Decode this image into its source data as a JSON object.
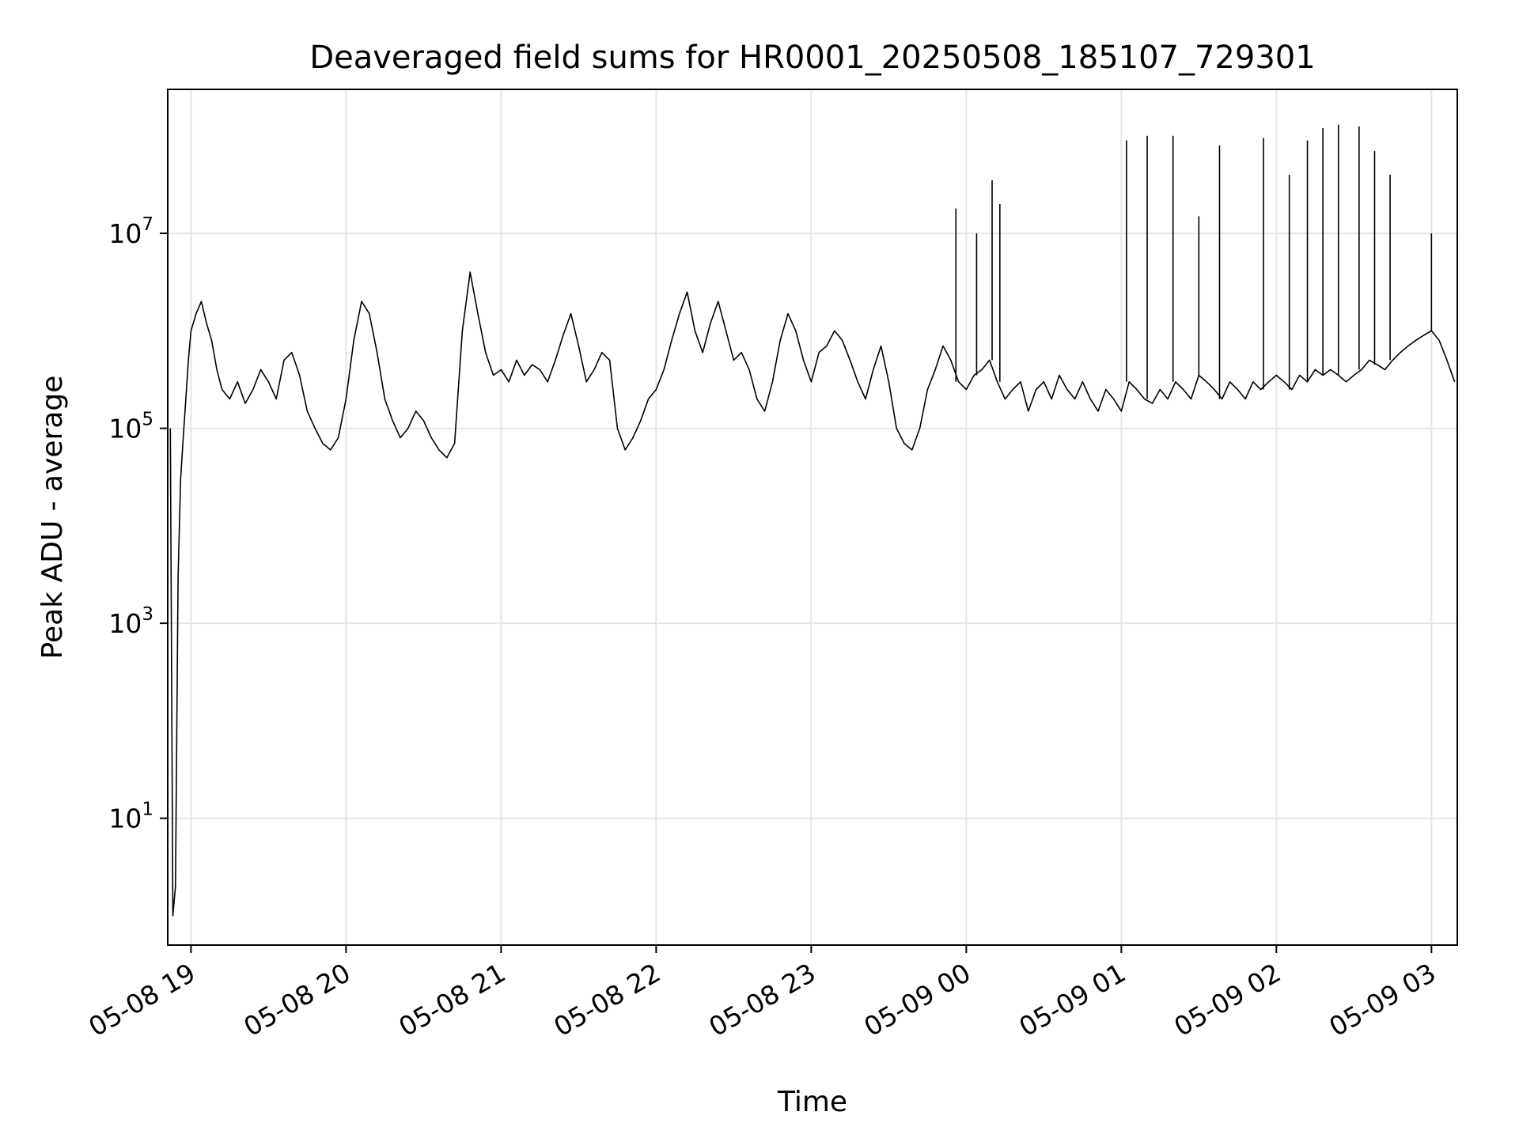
{
  "chart_data": {
    "type": "line",
    "title": "Deaveraged field sums for HR0001_20250508_185107_729301",
    "xlabel": "Time",
    "ylabel": "Peak ADU - average",
    "y_scale": "log",
    "grid": true,
    "legend": "none",
    "x_range": [
      "2025-05-08 18:51",
      "2025-05-09 03:10"
    ],
    "y_range": [
      0.5,
      300000000
    ],
    "x_ticks": [
      {
        "t": "2025-05-08 19:00",
        "label": "05-08 19"
      },
      {
        "t": "2025-05-08 20:00",
        "label": "05-08 20"
      },
      {
        "t": "2025-05-08 21:00",
        "label": "05-08 21"
      },
      {
        "t": "2025-05-08 22:00",
        "label": "05-08 22"
      },
      {
        "t": "2025-05-08 23:00",
        "label": "05-08 23"
      },
      {
        "t": "2025-05-09 00:00",
        "label": "05-09 00"
      },
      {
        "t": "2025-05-09 01:00",
        "label": "05-09 01"
      },
      {
        "t": "2025-05-09 02:00",
        "label": "05-09 02"
      },
      {
        "t": "2025-05-09 03:00",
        "label": "05-09 03"
      }
    ],
    "y_ticks": [
      {
        "value": 10,
        "base": "10",
        "exp": "1"
      },
      {
        "value": 1000,
        "base": "10",
        "exp": "3"
      },
      {
        "value": 100000,
        "base": "10",
        "exp": "5"
      },
      {
        "value": 10000000,
        "base": "10",
        "exp": "7"
      }
    ],
    "line_color": "#000000",
    "grid_color": "#e6e6e6",
    "series": [
      {
        "x": [
          "2025-05-08 18:52",
          "2025-05-08 18:53",
          "2025-05-08 18:54",
          "2025-05-08 18:55",
          "2025-05-08 18:56",
          "2025-05-08 18:57",
          "2025-05-08 18:58",
          "2025-05-08 18:59",
          "2025-05-08 19:00",
          "2025-05-08 19:02",
          "2025-05-08 19:04",
          "2025-05-08 19:06",
          "2025-05-08 19:08",
          "2025-05-08 19:10",
          "2025-05-08 19:12",
          "2025-05-08 19:15",
          "2025-05-08 19:18",
          "2025-05-08 19:21",
          "2025-05-08 19:24",
          "2025-05-08 19:27",
          "2025-05-08 19:30",
          "2025-05-08 19:33",
          "2025-05-08 19:36",
          "2025-05-08 19:39",
          "2025-05-08 19:42",
          "2025-05-08 19:45",
          "2025-05-08 19:48",
          "2025-05-08 19:51",
          "2025-05-08 19:54",
          "2025-05-08 19:57",
          "2025-05-08 20:00",
          "2025-05-08 20:03",
          "2025-05-08 20:06",
          "2025-05-08 20:09",
          "2025-05-08 20:12",
          "2025-05-08 20:15",
          "2025-05-08 20:18",
          "2025-05-08 20:21",
          "2025-05-08 20:24",
          "2025-05-08 20:27",
          "2025-05-08 20:30",
          "2025-05-08 20:33",
          "2025-05-08 20:36",
          "2025-05-08 20:39",
          "2025-05-08 20:42",
          "2025-05-08 20:45",
          "2025-05-08 20:48",
          "2025-05-08 20:51",
          "2025-05-08 20:54",
          "2025-05-08 20:57",
          "2025-05-08 21:00",
          "2025-05-08 21:03",
          "2025-05-08 21:06",
          "2025-05-08 21:09",
          "2025-05-08 21:12",
          "2025-05-08 21:15",
          "2025-05-08 21:18",
          "2025-05-08 21:21",
          "2025-05-08 21:24",
          "2025-05-08 21:27",
          "2025-05-08 21:30",
          "2025-05-08 21:33",
          "2025-05-08 21:36",
          "2025-05-08 21:39",
          "2025-05-08 21:42",
          "2025-05-08 21:45",
          "2025-05-08 21:48",
          "2025-05-08 21:51",
          "2025-05-08 21:54",
          "2025-05-08 21:57",
          "2025-05-08 22:00",
          "2025-05-08 22:03",
          "2025-05-08 22:06",
          "2025-05-08 22:09",
          "2025-05-08 22:12",
          "2025-05-08 22:15",
          "2025-05-08 22:18",
          "2025-05-08 22:21",
          "2025-05-08 22:24",
          "2025-05-08 22:27",
          "2025-05-08 22:30",
          "2025-05-08 22:33",
          "2025-05-08 22:36",
          "2025-05-08 22:39",
          "2025-05-08 22:42",
          "2025-05-08 22:45",
          "2025-05-08 22:48",
          "2025-05-08 22:51",
          "2025-05-08 22:54",
          "2025-05-08 22:57",
          "2025-05-08 23:00",
          "2025-05-08 23:03",
          "2025-05-08 23:06",
          "2025-05-08 23:09",
          "2025-05-08 23:12",
          "2025-05-08 23:15",
          "2025-05-08 23:18",
          "2025-05-08 23:21",
          "2025-05-08 23:24",
          "2025-05-08 23:27",
          "2025-05-08 23:30",
          "2025-05-08 23:33",
          "2025-05-08 23:36",
          "2025-05-08 23:39",
          "2025-05-08 23:42",
          "2025-05-08 23:45",
          "2025-05-08 23:48",
          "2025-05-08 23:51",
          "2025-05-08 23:54",
          "2025-05-08 23:57",
          "2025-05-09 00:00",
          "2025-05-09 00:03",
          "2025-05-09 00:06",
          "2025-05-09 00:09",
          "2025-05-09 00:12",
          "2025-05-09 00:15",
          "2025-05-09 00:18",
          "2025-05-09 00:21",
          "2025-05-09 00:24",
          "2025-05-09 00:27",
          "2025-05-09 00:30",
          "2025-05-09 00:33",
          "2025-05-09 00:36",
          "2025-05-09 00:39",
          "2025-05-09 00:42",
          "2025-05-09 00:45",
          "2025-05-09 00:48",
          "2025-05-09 00:51",
          "2025-05-09 00:54",
          "2025-05-09 00:57",
          "2025-05-09 01:00",
          "2025-05-09 01:03",
          "2025-05-09 01:06",
          "2025-05-09 01:09",
          "2025-05-09 01:12",
          "2025-05-09 01:15",
          "2025-05-09 01:18",
          "2025-05-09 01:21",
          "2025-05-09 01:24",
          "2025-05-09 01:27",
          "2025-05-09 01:30",
          "2025-05-09 01:33",
          "2025-05-09 01:36",
          "2025-05-09 01:39",
          "2025-05-09 01:42",
          "2025-05-09 01:45",
          "2025-05-09 01:48",
          "2025-05-09 01:51",
          "2025-05-09 01:54",
          "2025-05-09 01:57",
          "2025-05-09 02:00",
          "2025-05-09 02:03",
          "2025-05-09 02:06",
          "2025-05-09 02:09",
          "2025-05-09 02:12",
          "2025-05-09 02:15",
          "2025-05-09 02:18",
          "2025-05-09 02:21",
          "2025-05-09 02:24",
          "2025-05-09 02:27",
          "2025-05-09 02:30",
          "2025-05-09 02:33",
          "2025-05-09 02:36",
          "2025-05-09 02:39",
          "2025-05-09 02:42",
          "2025-05-09 02:45",
          "2025-05-09 02:48",
          "2025-05-09 02:51",
          "2025-05-09 02:54",
          "2025-05-09 02:57",
          "2025-05-09 03:00",
          "2025-05-09 03:03",
          "2025-05-09 03:06",
          "2025-05-09 03:09"
        ],
        "y": [
          100000,
          1,
          2,
          3000,
          30000,
          80000,
          200000,
          500000,
          1000000,
          1500000,
          2000000,
          1200000,
          800000,
          400000,
          250000,
          200000,
          300000,
          180000,
          250000,
          400000,
          300000,
          200000,
          500000,
          600000,
          350000,
          150000,
          100000,
          70000,
          60000,
          80000,
          200000,
          800000,
          2000000,
          1500000,
          600000,
          200000,
          120000,
          80000,
          100000,
          150000,
          120000,
          80000,
          60000,
          50000,
          70000,
          1000000,
          4000000,
          1500000,
          600000,
          350000,
          400000,
          300000,
          500000,
          350000,
          450000,
          400000,
          300000,
          500000,
          900000,
          1500000,
          700000,
          300000,
          400000,
          600000,
          500000,
          100000,
          60000,
          80000,
          120000,
          200000,
          250000,
          400000,
          800000,
          1500000,
          2500000,
          1000000,
          600000,
          1200000,
          2000000,
          1000000,
          500000,
          600000,
          400000,
          200000,
          150000,
          300000,
          800000,
          1500000,
          1000000,
          500000,
          300000,
          600000,
          700000,
          1000000,
          800000,
          500000,
          300000,
          200000,
          400000,
          700000,
          300000,
          100000,
          70000,
          60000,
          100000,
          250000,
          400000,
          700000,
          500000,
          300000,
          250000,
          350000,
          400000,
          500000,
          300000,
          200000,
          250000,
          300000,
          150000,
          250000,
          300000,
          200000,
          350000,
          250000,
          200000,
          300000,
          200000,
          150000,
          250000,
          200000,
          150000,
          300000,
          250000,
          200000,
          180000,
          250000,
          200000,
          300000,
          250000,
          200000,
          350000,
          300000,
          250000,
          200000,
          300000,
          250000,
          200000,
          300000,
          250000,
          300000,
          350000,
          300000,
          250000,
          350000,
          300000,
          400000,
          350000,
          400000,
          350000,
          300000,
          350000,
          400000,
          500000,
          450000,
          400000,
          500000,
          600000,
          700000,
          800000,
          900000,
          1000000,
          800000,
          500000,
          300000
        ]
      }
    ],
    "spikes": [
      {
        "t": "2025-05-08 23:56",
        "value": 18000000
      },
      {
        "t": "2025-05-09 00:04",
        "value": 10000000
      },
      {
        "t": "2025-05-09 00:10",
        "value": 35000000
      },
      {
        "t": "2025-05-09 00:13",
        "value": 20000000
      },
      {
        "t": "2025-05-09 01:02",
        "value": 90000000
      },
      {
        "t": "2025-05-09 01:10",
        "value": 100000000
      },
      {
        "t": "2025-05-09 01:20",
        "value": 100000000
      },
      {
        "t": "2025-05-09 01:30",
        "value": 15000000
      },
      {
        "t": "2025-05-09 01:38",
        "value": 80000000
      },
      {
        "t": "2025-05-09 01:55",
        "value": 95000000
      },
      {
        "t": "2025-05-09 02:05",
        "value": 40000000
      },
      {
        "t": "2025-05-09 02:12",
        "value": 90000000
      },
      {
        "t": "2025-05-09 02:18",
        "value": 120000000
      },
      {
        "t": "2025-05-09 02:24",
        "value": 130000000
      },
      {
        "t": "2025-05-09 02:32",
        "value": 125000000
      },
      {
        "t": "2025-05-09 02:38",
        "value": 70000000
      },
      {
        "t": "2025-05-09 02:44",
        "value": 40000000
      },
      {
        "t": "2025-05-09 03:00",
        "value": 10000000
      }
    ]
  }
}
